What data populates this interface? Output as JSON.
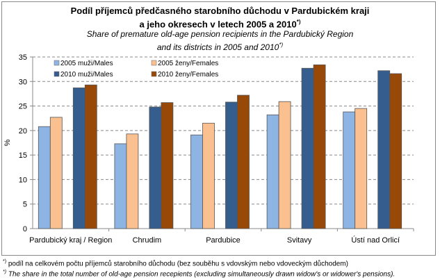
{
  "chart_data": {
    "type": "bar",
    "title": "Podíl příjemců předčasného starobního důchodu v Pardubickém kraji a jeho okresech v letech 2005 a 2010*)",
    "title_line1": "Podíl příjemců předčasného starobního důchodu v Pardubickém kraji",
    "title_line2": "a jeho okresech v letech 2005 a 2010",
    "subtitle_line1": "Share of premature old-age pension recipients in the Pardubický Region",
    "subtitle_line2": "and its districts in 2005 and 2010",
    "footnote_mark": "*)",
    "ylabel": "%",
    "xlabel": "",
    "ylim": [
      0,
      35
    ],
    "yticks": [
      "0",
      "5",
      "10",
      "15",
      "20",
      "25",
      "30",
      "35"
    ],
    "grid": true,
    "legend_position": "top-left",
    "categories": [
      "Pardubický kraj / Region",
      "Chrudim",
      "Pardubice",
      "Svitavy",
      "Ústí nad Orlicí"
    ],
    "series": [
      {
        "name": "2005 muži/Males",
        "color": "#8eb4e3",
        "values": [
          20.8,
          17.3,
          19.1,
          23.2,
          23.8
        ]
      },
      {
        "name": "2005 ženy/Females",
        "color": "#fac090",
        "values": [
          22.7,
          19.3,
          21.5,
          25.9,
          24.5
        ]
      },
      {
        "name": "2010 muži/Males",
        "color": "#355e8f",
        "values": [
          28.7,
          24.8,
          25.8,
          32.7,
          32.2
        ]
      },
      {
        "name": "2010 ženy/Females",
        "color": "#984807",
        "values": [
          29.3,
          25.7,
          27.2,
          33.4,
          31.6
        ]
      }
    ]
  },
  "footnotes": {
    "mark": "*)",
    "cz": "podíl na celkovém počtu příjemců starobního důchodu (bez souběhu s vdovským nebo vdoveckým důchodem)",
    "en": "The share in the total number of old-age pension recepients (excluding simultaneously drawn widow's or widower's pensions)."
  }
}
